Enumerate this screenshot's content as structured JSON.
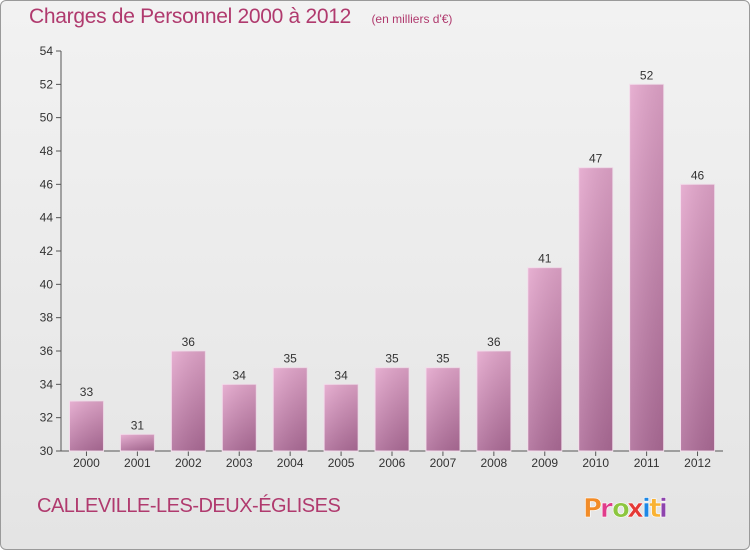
{
  "header": {
    "title": "Charges de Personnel 2000 à 2012",
    "subtitle": "(en milliers d'€)"
  },
  "commune": "CALLEVILLE-LES-DEUX-ÉGLISES",
  "logo": {
    "text": "Proxiti",
    "colors": [
      "#f28c28",
      "#e03c8a",
      "#8cc63f",
      "#e53935",
      "#1e88e5",
      "#f9b233",
      "#8e44ad"
    ]
  },
  "colors": {
    "bar_top": "#e4a6cc",
    "bar_bottom": "#ae6c98",
    "title": "#b03a6e"
  },
  "chart_data": {
    "type": "bar",
    "categories": [
      "2000",
      "2001",
      "2002",
      "2003",
      "2004",
      "2005",
      "2006",
      "2007",
      "2008",
      "2009",
      "2010",
      "2011",
      "2012"
    ],
    "values": [
      33,
      31,
      36,
      34,
      35,
      34,
      35,
      35,
      36,
      41,
      47,
      52,
      46
    ],
    "yticks": [
      30,
      32,
      34,
      36,
      38,
      40,
      42,
      44,
      46,
      48,
      50,
      52,
      54
    ],
    "ylim": [
      30,
      54
    ],
    "grid": false
  }
}
